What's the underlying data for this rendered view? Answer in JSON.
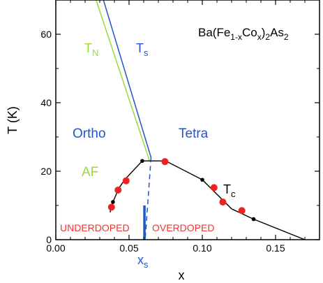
{
  "chart_data": {
    "type": "line",
    "title": "",
    "xlabel": "x",
    "ylabel": "T (K)",
    "xlim": [
      0.0,
      0.18
    ],
    "ylim": [
      0,
      70
    ],
    "xticks": [
      0.0,
      0.05,
      0.1,
      0.15
    ],
    "xtick_labels": [
      "0.00",
      "0.05",
      "0.10",
      "0.15"
    ],
    "yticks": [
      0,
      20,
      40,
      60
    ],
    "ytick_labels": [
      "0",
      "20",
      "40",
      "60"
    ],
    "grid": false,
    "legend": "none",
    "colors": {
      "TN": "#99dd33",
      "Ts": "#2255cc",
      "Tc_line": "#000000",
      "Tc_points": "#ee2222",
      "region_text": "#2255cc",
      "doping_text": "#ee3333"
    },
    "series": [
      {
        "name": "TN",
        "style": "line",
        "x": [
          0.0275,
          0.064
        ],
        "y": [
          70,
          23
        ]
      },
      {
        "name": "Ts",
        "style": "line",
        "x": [
          0.0325,
          0.065
        ],
        "y": [
          70,
          24
        ]
      },
      {
        "name": "Ts",
        "style": "dashed",
        "x": [
          0.065,
          0.061
        ],
        "y": [
          24,
          0
        ]
      },
      {
        "name": "Tc",
        "style": "line",
        "x": [
          0.037,
          0.039,
          0.043,
          0.047,
          0.059,
          0.075,
          0.1,
          0.12,
          0.135,
          0.17
        ],
        "y": [
          8.0,
          11,
          15,
          17.5,
          23,
          23,
          17.5,
          9,
          6,
          0
        ]
      },
      {
        "name": "Tc data (small)",
        "style": "markers",
        "x": [
          0.039,
          0.059,
          0.1,
          0.135
        ],
        "y": [
          11,
          23,
          17.5,
          6
        ]
      },
      {
        "name": "Tc data (red)",
        "style": "markers",
        "x": [
          0.038,
          0.0425,
          0.048,
          0.0745,
          0.108,
          0.114,
          0.127
        ],
        "y": [
          9.5,
          14.5,
          17.2,
          22.8,
          15.2,
          11.0,
          8.5
        ]
      },
      {
        "name": "xs",
        "style": "bar",
        "x": [
          0.0605,
          0.0605
        ],
        "y": [
          0,
          10
        ]
      }
    ],
    "annotations": {
      "compound": {
        "base": "Ba(Fe",
        "sub1": "1-x",
        "mid": "Co",
        "sub2": "x",
        "tail": ")",
        "sub3": "2",
        "end": "As",
        "sub4": "2"
      },
      "tn": {
        "base": "T",
        "sub": "N"
      },
      "ts": {
        "base": "T",
        "sub": "s"
      },
      "tc": {
        "base": "T",
        "sub": "c"
      },
      "xs": {
        "base": "x",
        "sub": "s"
      },
      "ortho": "Ortho",
      "tetra": "Tetra",
      "af": "AF",
      "underdoped": "UNDERDOPED",
      "overdoped": "OVERDOPED"
    }
  }
}
